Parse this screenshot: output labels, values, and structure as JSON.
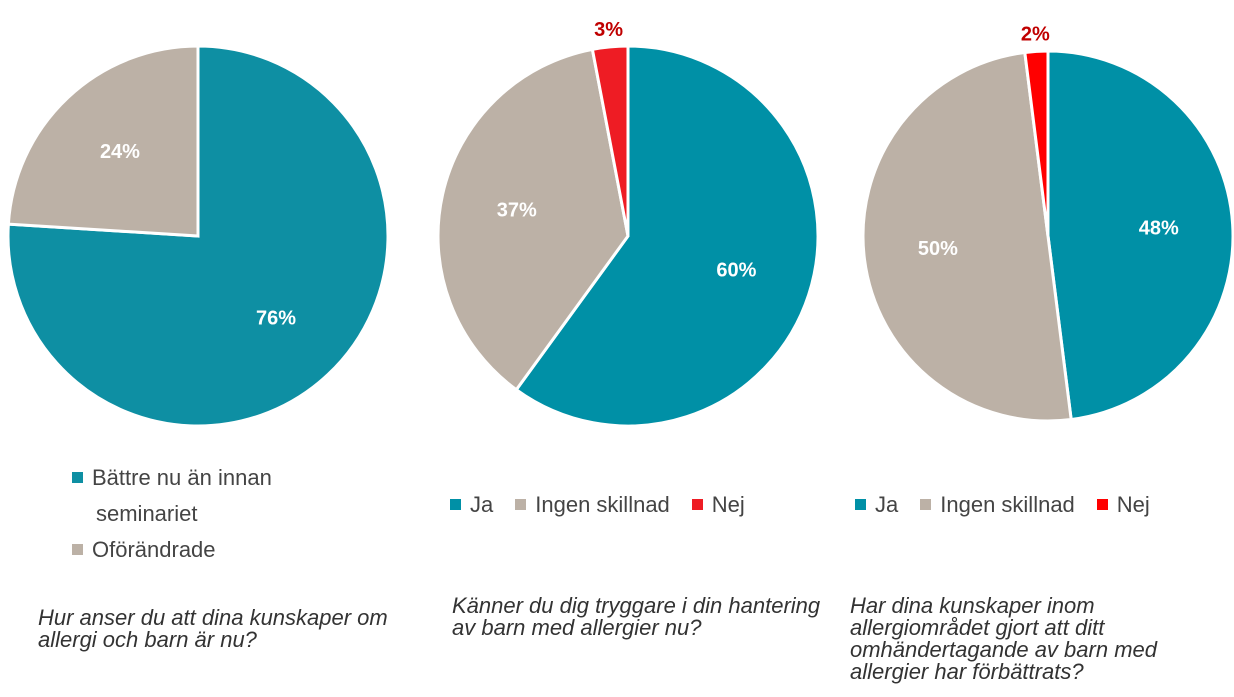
{
  "chart_data": [
    {
      "type": "pie",
      "categories": [
        "Bättre nu än innan seminariet",
        "Oförändrade"
      ],
      "values": [
        76,
        24
      ],
      "value_labels": [
        "76%",
        "24%"
      ],
      "colors": [
        "#0e8fa3",
        "#bcb1a6"
      ],
      "caption": "Hur anser du att dina kunskaper om allergi och barn är nu?"
    },
    {
      "type": "pie",
      "categories": [
        "Ja",
        "Ingen skillnad",
        "Nej"
      ],
      "values": [
        60,
        37,
        3
      ],
      "value_labels": [
        "60%",
        "37%",
        "3%"
      ],
      "colors": [
        "#0090a6",
        "#bcb1a6",
        "#ee1c24"
      ],
      "caption": "Känner du dig tryggare i din hantering av barn med allergier nu?"
    },
    {
      "type": "pie",
      "categories": [
        "Ja",
        "Ingen skillnad",
        "Nej"
      ],
      "values": [
        48,
        50,
        2
      ],
      "value_labels": [
        "48%",
        "50%",
        "2%"
      ],
      "colors": [
        "#0090a6",
        "#bcb1a6",
        "#ff0000"
      ],
      "caption": "Har dina kunskaper inom allergiområdet gjort att ditt omhändertagande av barn med allergier har förbättrats?"
    }
  ]
}
